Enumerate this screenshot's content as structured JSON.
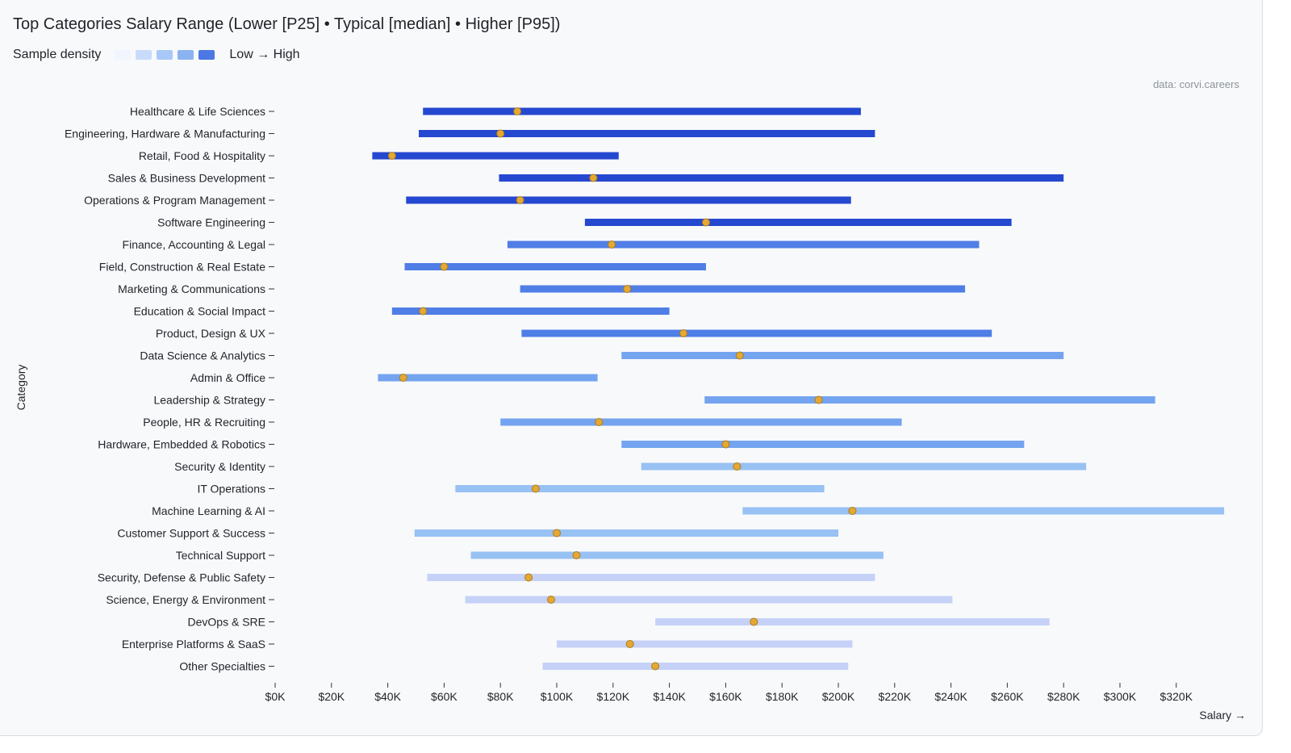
{
  "source_note": "data: corvi.careers",
  "chart_data": {
    "type": "range",
    "title": "Top Categories Salary Range (Lower [P25] • Typical [median] • Higher [P95])",
    "legend": {
      "label": "Sample density",
      "range_text": "Low → High",
      "colors": [
        "#f1f5fd",
        "#c8dbfb",
        "#a8c8f7",
        "#8cb3f1",
        "#4c78e4"
      ]
    },
    "xlabel": "Salary →",
    "ylabel": "Category",
    "xlim": [
      0,
      340000
    ],
    "xticks": [
      {
        "value": 0,
        "label": "$0K"
      },
      {
        "value": 20000,
        "label": "$20K"
      },
      {
        "value": 40000,
        "label": "$40K"
      },
      {
        "value": 60000,
        "label": "$60K"
      },
      {
        "value": 80000,
        "label": "$80K"
      },
      {
        "value": 100000,
        "label": "$100K"
      },
      {
        "value": 120000,
        "label": "$120K"
      },
      {
        "value": 140000,
        "label": "$140K"
      },
      {
        "value": 160000,
        "label": "$160K"
      },
      {
        "value": 180000,
        "label": "$180K"
      },
      {
        "value": 200000,
        "label": "$200K"
      },
      {
        "value": 220000,
        "label": "$220K"
      },
      {
        "value": 240000,
        "label": "$240K"
      },
      {
        "value": 260000,
        "label": "$260K"
      },
      {
        "value": 280000,
        "label": "$280K"
      },
      {
        "value": 300000,
        "label": "$300K"
      },
      {
        "value": 320000,
        "label": "$320K"
      }
    ],
    "grid": false,
    "marker_color": "#e3a934",
    "density_colors": [
      "#c5d1f7",
      "#98c1f4",
      "#74a4f0",
      "#4f7ee6",
      "#2548d0"
    ],
    "rows": [
      {
        "category": "Healthcare & Life Sciences",
        "p25": 52500,
        "median": 86000,
        "p95": 208000,
        "density": 4
      },
      {
        "category": "Engineering, Hardware & Manufacturing",
        "p25": 51000,
        "median": 80000,
        "p95": 213000,
        "density": 4
      },
      {
        "category": "Retail, Food & Hospitality",
        "p25": 34500,
        "median": 41500,
        "p95": 122000,
        "density": 4
      },
      {
        "category": "Sales & Business Development",
        "p25": 79500,
        "median": 113000,
        "p95": 280000,
        "density": 4
      },
      {
        "category": "Operations & Program Management",
        "p25": 46500,
        "median": 87000,
        "p95": 204500,
        "density": 4
      },
      {
        "category": "Software Engineering",
        "p25": 110000,
        "median": 153000,
        "p95": 261500,
        "density": 4
      },
      {
        "category": "Finance, Accounting & Legal",
        "p25": 82500,
        "median": 119500,
        "p95": 250000,
        "density": 3
      },
      {
        "category": "Field, Construction & Real Estate",
        "p25": 46000,
        "median": 60000,
        "p95": 153000,
        "density": 3
      },
      {
        "category": "Marketing & Communications",
        "p25": 87000,
        "median": 125000,
        "p95": 245000,
        "density": 3
      },
      {
        "category": "Education & Social Impact",
        "p25": 41500,
        "median": 52500,
        "p95": 140000,
        "density": 3
      },
      {
        "category": "Product, Design & UX",
        "p25": 87500,
        "median": 145000,
        "p95": 254500,
        "density": 3
      },
      {
        "category": "Data Science & Analytics",
        "p25": 123000,
        "median": 165000,
        "p95": 280000,
        "density": 2
      },
      {
        "category": "Admin & Office",
        "p25": 36500,
        "median": 45500,
        "p95": 114500,
        "density": 2
      },
      {
        "category": "Leadership & Strategy",
        "p25": 152500,
        "median": 193000,
        "p95": 312500,
        "density": 2
      },
      {
        "category": "People, HR & Recruiting",
        "p25": 80000,
        "median": 115000,
        "p95": 222500,
        "density": 2
      },
      {
        "category": "Hardware, Embedded & Robotics",
        "p25": 123000,
        "median": 160000,
        "p95": 266000,
        "density": 2
      },
      {
        "category": "Security & Identity",
        "p25": 130000,
        "median": 164000,
        "p95": 288000,
        "density": 1
      },
      {
        "category": "IT Operations",
        "p25": 64000,
        "median": 92500,
        "p95": 195000,
        "density": 1
      },
      {
        "category": "Machine Learning & AI",
        "p25": 166000,
        "median": 205000,
        "p95": 337000,
        "density": 1
      },
      {
        "category": "Customer Support & Success",
        "p25": 49500,
        "median": 100000,
        "p95": 200000,
        "density": 1
      },
      {
        "category": "Technical Support",
        "p25": 69500,
        "median": 107000,
        "p95": 216000,
        "density": 1
      },
      {
        "category": "Security, Defense & Public Safety",
        "p25": 54000,
        "median": 90000,
        "p95": 213000,
        "density": 0
      },
      {
        "category": "Science, Energy & Environment",
        "p25": 67500,
        "median": 98000,
        "p95": 240500,
        "density": 0
      },
      {
        "category": "DevOps & SRE",
        "p25": 135000,
        "median": 170000,
        "p95": 275000,
        "density": 0
      },
      {
        "category": "Enterprise Platforms & SaaS",
        "p25": 100000,
        "median": 126000,
        "p95": 205000,
        "density": 0
      },
      {
        "category": "Other Specialties",
        "p25": 95000,
        "median": 135000,
        "p95": 203500,
        "density": 0
      }
    ]
  }
}
